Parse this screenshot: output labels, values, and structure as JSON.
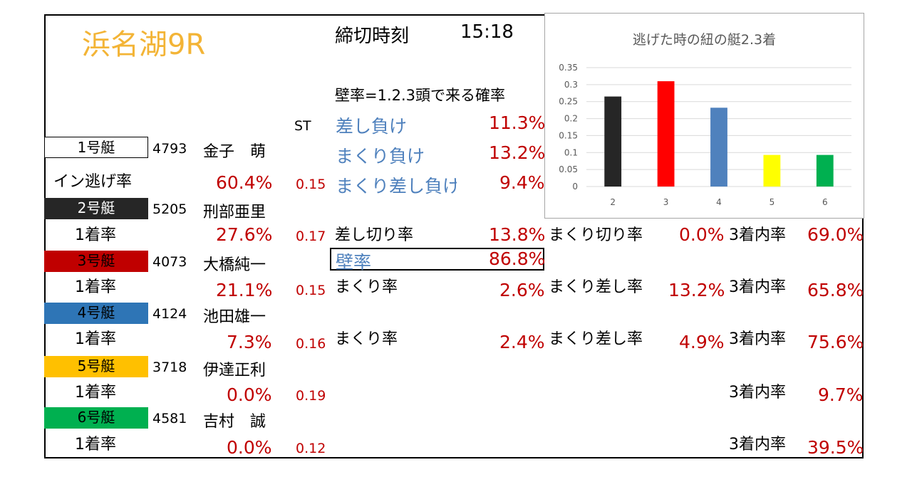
{
  "header": {
    "title": "浜名湖9R",
    "deadline_label": "締切時刻",
    "deadline_time": "15:18"
  },
  "rates": {
    "heading": "壁率=1.2.3頭で来る確率",
    "sashi_make_label": "差し負け",
    "sashi_make_value": "11.3%",
    "makuri_make_label": "まくり負け",
    "makuri_make_value": "13.2%",
    "makuri_sashi_make_label": "まくり差し負け",
    "makuri_sashi_make_value": "9.4%",
    "st_label": "ST"
  },
  "boats": [
    {
      "label": "1号艇",
      "color": "#ffffff",
      "number": "4793",
      "name": "金子　萌",
      "stat_label": "イン逃げ率",
      "stat_value": "60.4%",
      "st": "0.15"
    },
    {
      "label": "2号艇",
      "color": "#262626",
      "number": "5205",
      "name": "刑部亜里",
      "stat_label": "1着率",
      "stat_value": "27.6%",
      "st": "0.17"
    },
    {
      "label": "3号艇",
      "color": "#c00000",
      "number": "4073",
      "name": "大橋純一",
      "stat_label": "1着率",
      "stat_value": "21.1%",
      "st": "0.15"
    },
    {
      "label": "4号艇",
      "color": "#2e75b6",
      "number": "4124",
      "name": "池田雄一",
      "stat_label": "1着率",
      "stat_value": "7.3%",
      "st": "0.16"
    },
    {
      "label": "5号艇",
      "color": "#ffc000",
      "number": "3718",
      "name": "伊達正利",
      "stat_label": "1着率",
      "stat_value": "0.0%",
      "st": "0.19"
    },
    {
      "label": "6号艇",
      "color": "#00b050",
      "number": "4581",
      "name": "吉村　誠",
      "stat_label": "1着率",
      "stat_value": "0.0%",
      "st": "0.12"
    }
  ],
  "boat2": {
    "sashikiri_label": "差し切り率",
    "sashikiri_value": "13.8%",
    "wall_label": "壁率",
    "wall_value": "86.8%",
    "makurikiri_label": "まくり切り率",
    "makurikiri_value": "0.0%",
    "top3_label": "3着内率",
    "top3_value": "69.0%"
  },
  "boat3": {
    "makuri_label": "まくり率",
    "makuri_value": "2.6%",
    "makurisashi_label": "まくり差し率",
    "makurisashi_value": "13.2%",
    "top3_label": "3着内率",
    "top3_value": "65.8%"
  },
  "boat4": {
    "makuri_label": "まくり率",
    "makuri_value": "2.4%",
    "makurisashi_label": "まくり差し率",
    "makurisashi_value": "4.9%",
    "top3_label": "3着内率",
    "top3_value": "75.6%"
  },
  "boat5": {
    "top3_label": "3着内率",
    "top3_value": "9.7%"
  },
  "boat6": {
    "top3_label": "3着内率",
    "top3_value": "39.5%"
  },
  "chart_data": {
    "type": "bar",
    "title": "逃げた時の紐の艇2.3着",
    "categories": [
      "2",
      "3",
      "4",
      "5",
      "6"
    ],
    "values": [
      0.265,
      0.31,
      0.232,
      0.093,
      0.093
    ],
    "colors": [
      "#262626",
      "#ff0000",
      "#4f81bd",
      "#ffff00",
      "#00b050"
    ],
    "ylim": [
      0,
      0.35
    ],
    "yticks": [
      "0",
      "0.05",
      "0.1",
      "0.15",
      "0.2",
      "0.25",
      "0.3",
      "0.35"
    ],
    "grid": true,
    "legend": "none"
  }
}
